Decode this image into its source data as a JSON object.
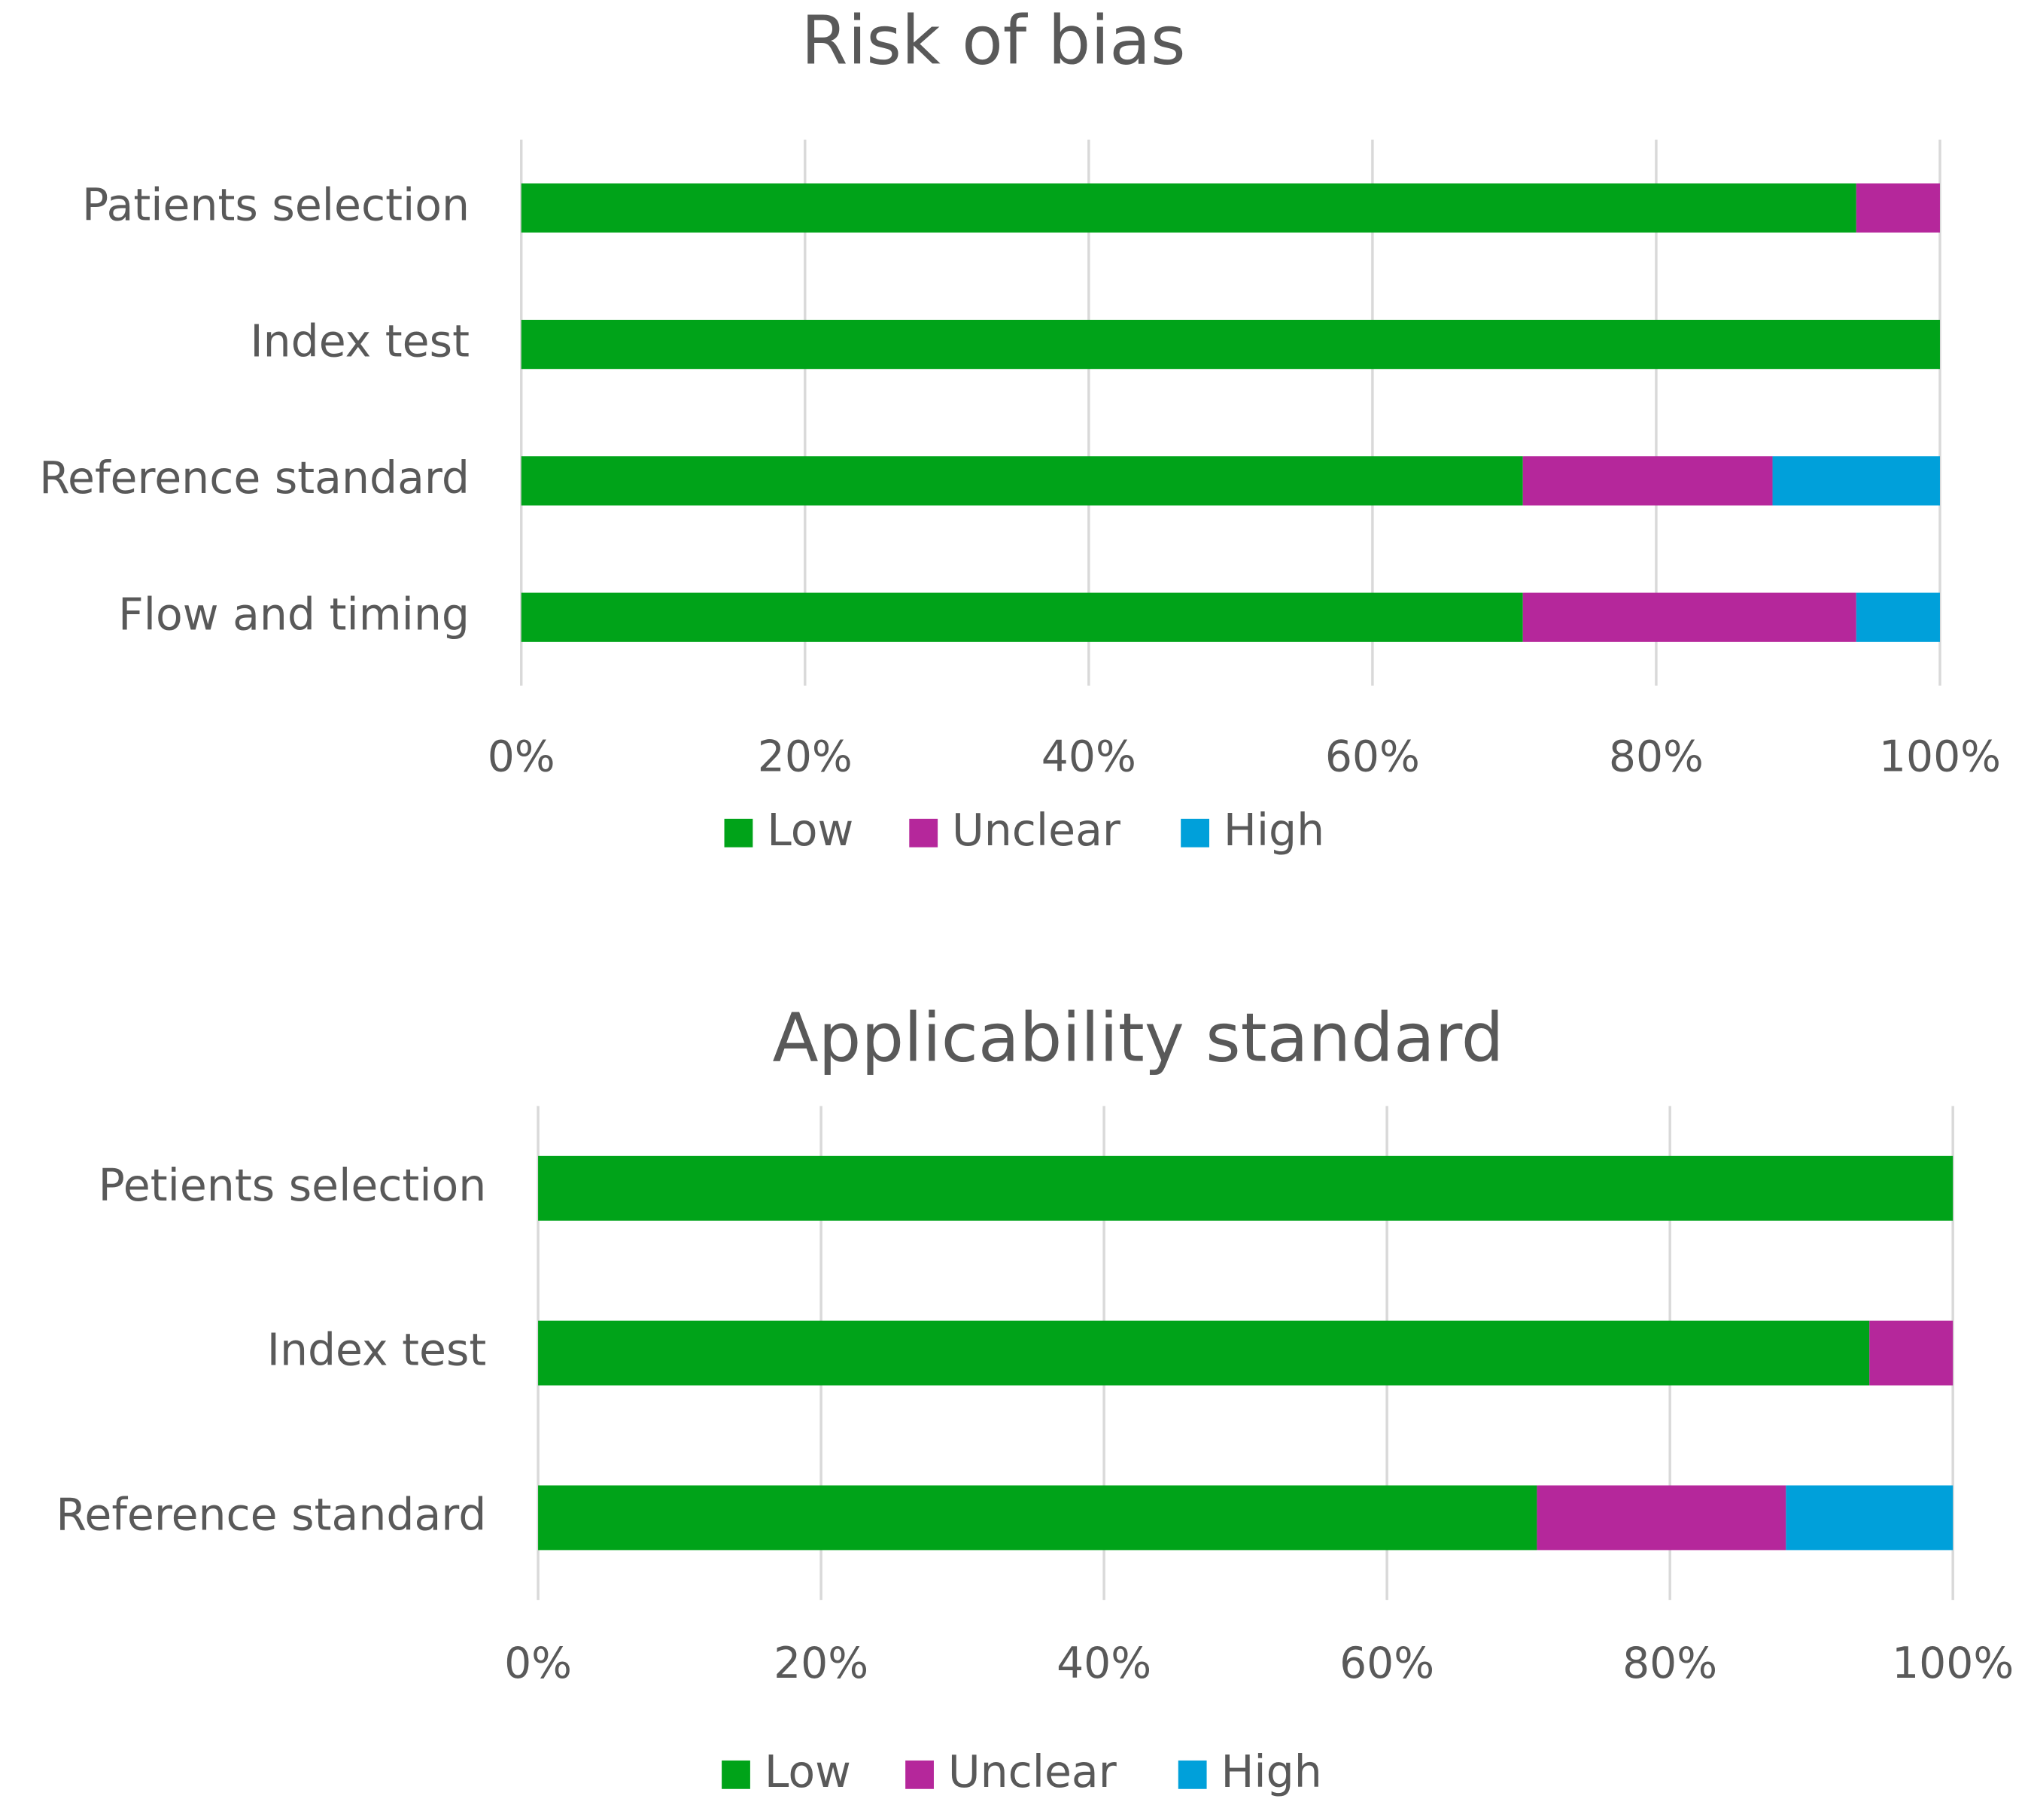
{
  "chart_data": [
    {
      "type": "stacked-bar-horizontal",
      "title": "Risk of bias",
      "categories": [
        "Patients selection",
        "Index test",
        "Reference standard",
        "Flow and timing"
      ],
      "series": [
        {
          "name": "Low",
          "color": "#00a319",
          "values": [
            94.1,
            100,
            70.6,
            70.6
          ]
        },
        {
          "name": "Unclear",
          "color": "#b5279b",
          "values": [
            5.9,
            0,
            17.6,
            23.5
          ]
        },
        {
          "name": "High",
          "color": "#00a0da",
          "values": [
            0,
            0,
            11.8,
            5.9
          ]
        }
      ],
      "xlim": [
        0,
        100
      ],
      "xticks": [
        {
          "value": 0,
          "label": "0%"
        },
        {
          "value": 20,
          "label": "20%"
        },
        {
          "value": 40,
          "label": "40%"
        },
        {
          "value": 60,
          "label": "60%"
        },
        {
          "value": 80,
          "label": "80%"
        },
        {
          "value": 100,
          "label": "100%"
        }
      ],
      "grid": true,
      "legend": "bottom"
    },
    {
      "type": "stacked-bar-horizontal",
      "title": "Applicability standard",
      "categories": [
        "Petients selection",
        "Index test",
        "Reference standard"
      ],
      "series": [
        {
          "name": "Low",
          "color": "#00a319",
          "values": [
            100,
            94.1,
            70.6
          ]
        },
        {
          "name": "Unclear",
          "color": "#b5279b",
          "values": [
            0,
            5.9,
            17.6
          ]
        },
        {
          "name": "High",
          "color": "#00a0da",
          "values": [
            0,
            0,
            11.8
          ]
        }
      ],
      "xlim": [
        0,
        100
      ],
      "xticks": [
        {
          "value": 0,
          "label": "0%"
        },
        {
          "value": 20,
          "label": "20%"
        },
        {
          "value": 40,
          "label": "40%"
        },
        {
          "value": 60,
          "label": "60%"
        },
        {
          "value": 80,
          "label": "80%"
        },
        {
          "value": 100,
          "label": "100%"
        }
      ],
      "grid": true,
      "legend": "bottom"
    }
  ]
}
